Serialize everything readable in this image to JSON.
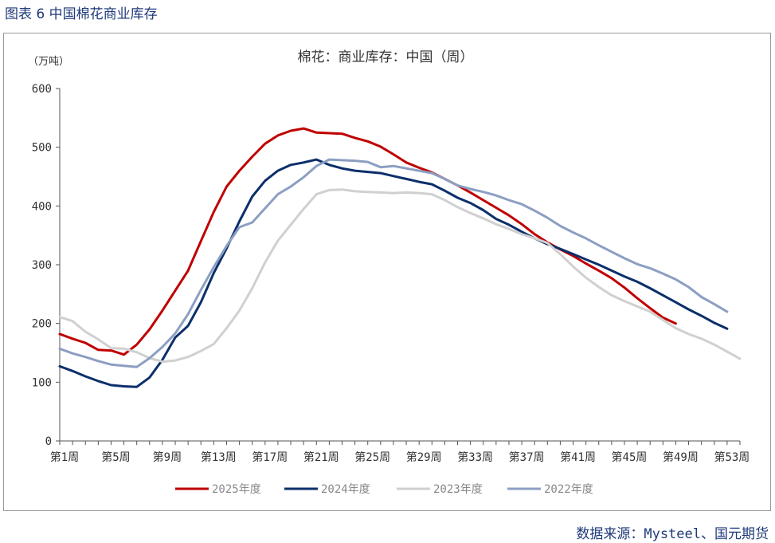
{
  "figure_label": "图表 6  中国棉花商业库存",
  "source_label": "数据来源：Mysteel、国元期货",
  "colors": {
    "s2025": "#c00000",
    "s2024": "#0b2f6b",
    "s2023": "#d0d0d0",
    "s2022": "#8c9fc2"
  },
  "chart_data": {
    "type": "line",
    "title": "棉花：商业库存：中国（周）",
    "unit_label": "（万吨）",
    "xlabel": "",
    "ylabel": "（万吨）",
    "ylim": [
      0,
      600
    ],
    "yticks": [
      0,
      100,
      200,
      300,
      400,
      500,
      600
    ],
    "x_ticks": [
      "第1周",
      "第5周",
      "第9周",
      "第13周",
      "第17周",
      "第21周",
      "第25周",
      "第29周",
      "第33周",
      "第37周",
      "第41周",
      "第45周",
      "第49周",
      "第53周"
    ],
    "x_tick_weeks": [
      1,
      5,
      9,
      13,
      17,
      21,
      25,
      29,
      33,
      37,
      41,
      45,
      49,
      53
    ],
    "xlim": [
      1,
      54
    ],
    "legend_position": "bottom",
    "grid": false,
    "series": [
      {
        "name": "2025年度",
        "color_key": "s2025",
        "values": [
          182,
          174,
          167,
          155,
          154,
          147,
          164,
          190,
          222,
          256,
          290,
          340,
          390,
          433,
          460,
          484,
          506,
          520,
          528,
          532,
          525,
          524,
          523,
          516,
          510,
          501,
          488,
          474,
          465,
          457,
          446,
          435,
          423,
          410,
          397,
          384,
          369,
          352,
          338,
          326,
          315,
          302,
          290,
          277,
          261,
          243,
          226,
          210,
          200
        ]
      },
      {
        "name": "2024年度",
        "color_key": "s2024",
        "values": [
          127,
          119,
          110,
          102,
          95,
          93,
          92,
          108,
          138,
          176,
          196,
          236,
          286,
          328,
          374,
          416,
          443,
          460,
          470,
          474,
          479,
          470,
          464,
          460,
          458,
          456,
          451,
          446,
          441,
          437,
          426,
          414,
          405,
          393,
          378,
          368,
          356,
          345,
          335,
          327,
          318,
          309,
          300,
          290,
          280,
          271,
          260,
          248,
          236,
          224,
          213,
          201,
          191
        ]
      },
      {
        "name": "2023年度",
        "color_key": "s2023",
        "values": [
          211,
          204,
          186,
          173,
          158,
          157,
          151,
          141,
          135,
          137,
          143,
          153,
          165,
          192,
          222,
          260,
          304,
          341,
          368,
          395,
          420,
          427,
          428,
          425,
          424,
          423,
          422,
          423,
          422,
          420,
          410,
          398,
          388,
          379,
          369,
          361,
          352,
          345,
          337,
          318,
          297,
          278,
          262,
          248,
          238,
          229,
          220,
          206,
          192,
          182,
          174,
          164,
          152,
          140
        ]
      },
      {
        "name": "2022年度",
        "color_key": "s2022",
        "values": [
          157,
          149,
          143,
          136,
          130,
          128,
          126,
          141,
          160,
          183,
          216,
          257,
          296,
          332,
          364,
          372,
          396,
          420,
          433,
          449,
          468,
          479,
          478,
          477,
          475,
          466,
          468,
          464,
          460,
          456,
          446,
          435,
          429,
          424,
          418,
          410,
          403,
          392,
          380,
          366,
          355,
          345,
          333,
          322,
          311,
          301,
          294,
          285,
          275,
          262,
          245,
          233,
          220
        ]
      }
    ]
  }
}
